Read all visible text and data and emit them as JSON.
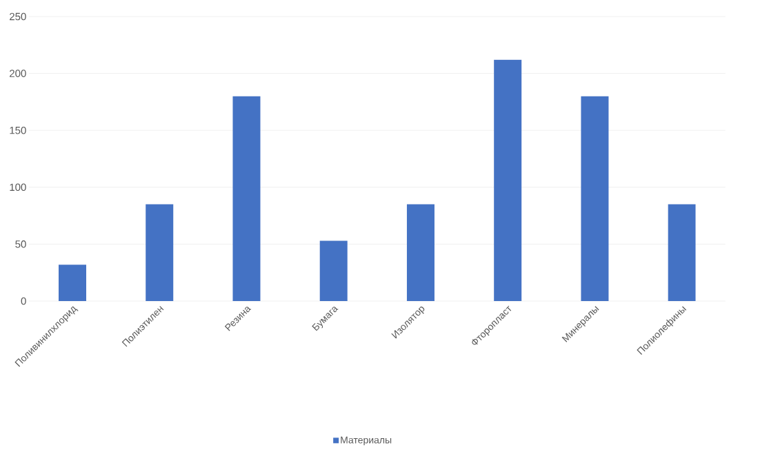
{
  "chart_data": {
    "type": "bar",
    "categories": [
      "Поливинилхлорид",
      "Полиэтилен",
      "Резина",
      "Бумага",
      "Изолятор",
      "Фторопласт",
      "Минералы",
      "Полиолефины"
    ],
    "series": [
      {
        "name": "Материалы",
        "color": "#4472c4",
        "values": [
          32,
          85,
          180,
          53,
          85,
          212,
          180,
          85
        ]
      }
    ],
    "ylim": [
      0,
      250
    ],
    "yticks": [
      0,
      50,
      100,
      150,
      200,
      250
    ],
    "grid": "y",
    "legend": "bottom"
  }
}
